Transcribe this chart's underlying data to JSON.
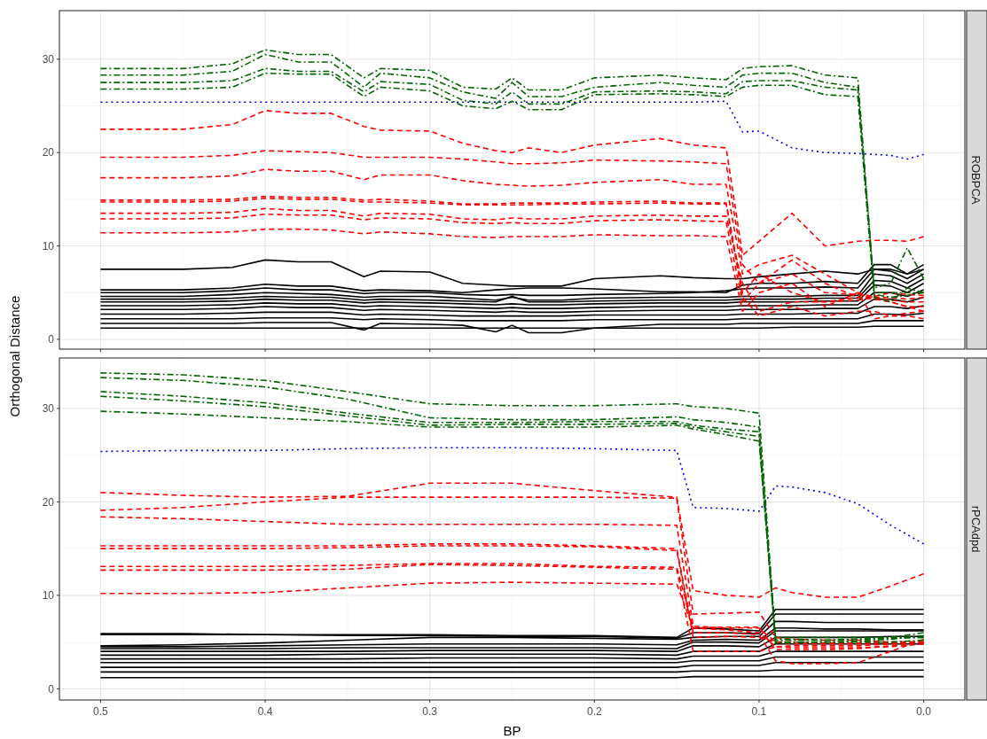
{
  "chart_data": [
    {
      "type": "line",
      "title": "ROBPCA",
      "ylabel": "Orthogonal Distance",
      "xlim": [
        0.525,
        -0.025
      ],
      "ylim": [
        -1.05,
        35.2
      ],
      "xticks": [
        {
          "value": 0.5,
          "label": null
        },
        {
          "value": 0.4,
          "label": null
        },
        {
          "value": 0.3,
          "label": null
        },
        {
          "value": 0.2,
          "label": null
        },
        {
          "value": 0.1,
          "label": null
        },
        {
          "value": 0,
          "label": null
        }
      ],
      "yticks": [
        0,
        10,
        20,
        30
      ],
      "grid": true,
      "tick_labels": "y",
      "x": [
        0.5,
        0.45,
        0.42,
        0.4,
        0.38,
        0.36,
        0.34,
        0.33,
        0.3,
        0.28,
        0.26,
        0.25,
        0.24,
        0.22,
        0.2,
        0.16,
        0.14,
        0.12,
        0.11,
        0.1,
        0.08,
        0.06,
        0.04,
        0.03,
        0.02,
        0.01,
        0.0
      ],
      "series": [
        {
          "color": "#000000",
          "line_style": "solid",
          "values": [
            7.5,
            7.5,
            7.7,
            8.5,
            8.3,
            8.3,
            6.7,
            7.3,
            7.2,
            6,
            5.8,
            5.7,
            5.7,
            5.7,
            6.5,
            6.8,
            6.6,
            6.5,
            6.5,
            6.7,
            7,
            7.3,
            7,
            7.5,
            7.5,
            7,
            7.5
          ]
        },
        {
          "color": "#000000",
          "line_style": "solid",
          "values": [
            5.3,
            5.3,
            5.5,
            5.9,
            5.7,
            5.7,
            5.2,
            5.3,
            5.2,
            5,
            5.3,
            5.4,
            5.5,
            5.5,
            5.4,
            5.1,
            5.1,
            5,
            5.8,
            6,
            6,
            6.2,
            6,
            8,
            8,
            7,
            8
          ]
        },
        {
          "color": "#000000",
          "line_style": "solid",
          "values": [
            5,
            5,
            5.2,
            5.5,
            5.3,
            5.3,
            4.9,
            5,
            5,
            4.8,
            4.7,
            4.8,
            4.7,
            4.7,
            4.8,
            4.9,
            5,
            5.2,
            5.4,
            5.5,
            5.5,
            5.6,
            5.5,
            7.5,
            7.3,
            6.5,
            7.5
          ]
        },
        {
          "color": "#000000",
          "line_style": "solid",
          "values": [
            4.6,
            4.6,
            4.8,
            5,
            4.9,
            4.8,
            4.5,
            4.6,
            4.6,
            4.4,
            4.2,
            4.5,
            4.2,
            4.2,
            4.4,
            4.5,
            4.5,
            4.5,
            4.6,
            4.6,
            4.6,
            4.7,
            4.7,
            7,
            6.8,
            6,
            7
          ]
        },
        {
          "color": "#000000",
          "line_style": "solid",
          "values": [
            4.3,
            4.3,
            4.4,
            4.6,
            4.5,
            4.5,
            4.2,
            4.3,
            4.2,
            4.1,
            4,
            4.6,
            4,
            4,
            4.1,
            4.2,
            4.2,
            4.2,
            4.3,
            4.3,
            4.3,
            4.4,
            4.4,
            6.3,
            6.2,
            5.5,
            6.5
          ]
        },
        {
          "color": "#000000",
          "line_style": "solid",
          "values": [
            4,
            4,
            4.1,
            4.3,
            4.2,
            4.2,
            3.9,
            4,
            3.9,
            3.8,
            3.7,
            3.8,
            3.7,
            3.7,
            3.8,
            3.9,
            3.9,
            3.9,
            4,
            4,
            4,
            4.1,
            4.1,
            5.8,
            5.7,
            5,
            6
          ]
        },
        {
          "color": "#000000",
          "line_style": "solid",
          "values": [
            3.6,
            3.6,
            3.7,
            3.9,
            3.8,
            3.8,
            3.5,
            3.6,
            3.5,
            3.4,
            3.3,
            3.4,
            3.3,
            3.3,
            3.4,
            3.5,
            3.5,
            3.5,
            3.6,
            3.6,
            3.6,
            3.7,
            3.7,
            5,
            5,
            4.6,
            5.3
          ]
        },
        {
          "color": "#000000",
          "line_style": "solid",
          "values": [
            3.2,
            3.2,
            3.3,
            3.5,
            3.4,
            3.4,
            3.1,
            3.2,
            3.1,
            3,
            2.9,
            3,
            2.9,
            2.9,
            3,
            3.1,
            3.1,
            3.1,
            3.2,
            3.2,
            3.2,
            3.3,
            3.3,
            4.3,
            4.3,
            4,
            4.5
          ]
        },
        {
          "color": "#000000",
          "line_style": "solid",
          "values": [
            2.7,
            2.7,
            2.8,
            2.9,
            2.9,
            2.9,
            2.6,
            2.7,
            2.6,
            2.5,
            2.5,
            2.5,
            2.5,
            2.5,
            2.6,
            2.6,
            2.6,
            2.6,
            2.7,
            2.7,
            2.7,
            2.8,
            2.8,
            3.5,
            3.5,
            3.3,
            3.6
          ]
        },
        {
          "color": "#000000",
          "line_style": "solid",
          "values": [
            2.2,
            2.2,
            2.2,
            2.3,
            2.3,
            2.3,
            2.1,
            2.2,
            2.1,
            2,
            2,
            2,
            2,
            2,
            2.1,
            2.1,
            2.1,
            2.1,
            2.2,
            2.2,
            2.2,
            2.2,
            2.2,
            2.7,
            2.7,
            2.6,
            2.8
          ]
        },
        {
          "color": "#000000",
          "line_style": "solid",
          "values": [
            1.7,
            1.7,
            1.7,
            1.8,
            1.8,
            1.8,
            1,
            1.7,
            1.6,
            1.5,
            0.8,
            1.5,
            0.7,
            0.7,
            1.2,
            1.6,
            1.6,
            1.6,
            1.7,
            1.7,
            1.7,
            1.7,
            1.7,
            2,
            2,
            2,
            2
          ]
        },
        {
          "color": "#000000",
          "line_style": "solid",
          "values": [
            1.2,
            1.2,
            1.2,
            1.2,
            1.2,
            1.2,
            1.2,
            1.2,
            1.2,
            1.2,
            1.2,
            1.2,
            1.2,
            1.2,
            1.2,
            1.2,
            1.2,
            1.2,
            1.2,
            1.2,
            1.3,
            1.3,
            1.3,
            1.4,
            1.4,
            1.4,
            1.4
          ]
        },
        {
          "color": "#ff0000",
          "line_style": "dashed",
          "values": [
            22.5,
            22.5,
            23,
            24.5,
            24.2,
            24.2,
            22.8,
            22.4,
            22.3,
            21,
            20.2,
            20,
            20.5,
            20,
            20.8,
            21.5,
            20.8,
            20.5,
            9,
            10.5,
            13.5,
            10,
            10.5,
            10.6,
            10.6,
            10.5,
            11
          ]
        },
        {
          "color": "#ff0000",
          "line_style": "dashed",
          "values": [
            19.5,
            19.5,
            19.7,
            20.2,
            20.1,
            20,
            19.5,
            19.5,
            19.5,
            19.3,
            19,
            18.8,
            18.8,
            18.9,
            19.2,
            19.1,
            19,
            18.8,
            8,
            6,
            8.5,
            6,
            4.5,
            4.3,
            4,
            3.5,
            3.5
          ]
        },
        {
          "color": "#ff0000",
          "line_style": "dashed",
          "values": [
            17.3,
            17.3,
            17.5,
            18.2,
            18,
            18,
            17.1,
            17.6,
            17.6,
            17,
            16.6,
            16.5,
            16.4,
            16.5,
            16.8,
            17.1,
            16.6,
            16.6,
            7,
            8,
            9,
            7,
            5,
            4.5,
            4.2,
            4,
            4
          ]
        },
        {
          "color": "#ff0000",
          "line_style": "dashed",
          "values": [
            14.9,
            14.9,
            15,
            15.3,
            15.2,
            15.2,
            14.9,
            15,
            14.8,
            14.5,
            14.5,
            14.6,
            14.6,
            14.6,
            14.7,
            14.8,
            14.6,
            14.6,
            5,
            7,
            5,
            4,
            4.5,
            4.6,
            5,
            4.8,
            4.7
          ]
        },
        {
          "color": "#ff0000",
          "line_style": "dashed",
          "values": [
            14.7,
            14.7,
            14.8,
            15.1,
            15,
            15,
            14.7,
            14.7,
            14.6,
            14.4,
            14.4,
            14.4,
            14.4,
            14.5,
            14.5,
            14.6,
            14.5,
            14.5,
            4.5,
            2.5,
            3.5,
            2.5,
            3,
            3,
            2.5,
            2.5,
            2.2
          ]
        },
        {
          "color": "#ff0000",
          "line_style": "dashed",
          "values": [
            13.5,
            13.5,
            13.6,
            14,
            13.8,
            13.8,
            13.2,
            13.5,
            13.4,
            12.9,
            12.8,
            13,
            12.9,
            12.9,
            13.2,
            13.3,
            13.2,
            13.2,
            6,
            3,
            4,
            4,
            4.2,
            4.5,
            4.5,
            4.3,
            4.5
          ]
        },
        {
          "color": "#ff0000",
          "line_style": "dashed",
          "values": [
            12.9,
            12.9,
            13,
            13.4,
            13.3,
            13.3,
            12.8,
            13,
            12.9,
            12.5,
            12.4,
            12.5,
            12.4,
            12.4,
            12.7,
            12.8,
            12.7,
            12.6,
            4,
            6,
            7,
            5,
            4.8,
            4.5,
            4,
            3.5,
            3
          ]
        },
        {
          "color": "#ff0000",
          "line_style": "dashed",
          "values": [
            11.4,
            11.4,
            11.5,
            11.8,
            11.8,
            11.7,
            11.3,
            11.5,
            11.3,
            11,
            10.9,
            11,
            11,
            11,
            11.2,
            11.1,
            11.1,
            11,
            3,
            5,
            6,
            3.5,
            5,
            2.2,
            2.5,
            2.8,
            3
          ]
        },
        {
          "color": "#0000ff",
          "line_style": "dotted",
          "values": [
            25.4,
            25.4,
            25.4,
            25.4,
            25.4,
            25.4,
            25.4,
            25.4,
            25.4,
            25.4,
            25.4,
            25.4,
            25.4,
            25.4,
            25.4,
            25.4,
            25.4,
            25.5,
            22.2,
            22.3,
            20.5,
            20,
            19.9,
            19.8,
            19.7,
            19.3,
            19.8
          ]
        },
        {
          "color": "#006400",
          "line_style": "dashdot",
          "values": [
            29,
            29,
            29.5,
            31,
            30.5,
            30.5,
            28,
            29,
            28.8,
            27,
            26.8,
            28,
            26.7,
            26.7,
            28,
            28.3,
            28,
            27.8,
            29,
            29.2,
            29.3,
            28.3,
            28,
            5,
            5,
            5,
            5
          ]
        },
        {
          "color": "#006400",
          "line_style": "dashdot",
          "values": [
            28.3,
            28.3,
            28.7,
            30.5,
            29.7,
            29.7,
            27,
            28.5,
            28,
            26.5,
            25.8,
            27.5,
            26,
            26,
            27,
            27.5,
            27.2,
            27,
            28.3,
            28.5,
            28.5,
            27.5,
            27,
            4.8,
            4.5,
            4.7,
            5
          ]
        },
        {
          "color": "#006400",
          "line_style": "dashdot",
          "values": [
            27.5,
            27.5,
            27.7,
            29,
            28.7,
            28.7,
            26.5,
            27.6,
            27.3,
            25.6,
            25.2,
            26.5,
            25.2,
            25.2,
            26.5,
            26.6,
            26.5,
            26.3,
            27.6,
            27.7,
            27.7,
            27,
            26.7,
            5.5,
            6,
            9.8,
            6.5
          ]
        },
        {
          "color": "#006400",
          "line_style": "dashdot",
          "values": [
            26.8,
            26.8,
            27,
            28.5,
            28.4,
            28.4,
            26,
            27,
            26.6,
            25,
            24.7,
            25.5,
            24.6,
            24.6,
            26.2,
            26.3,
            26.2,
            26,
            27,
            27.2,
            27.2,
            26.2,
            26,
            4.5,
            4,
            5.5,
            5
          ]
        }
      ]
    },
    {
      "type": "line",
      "title": "rPCAdpd",
      "xlabel": "BP",
      "xlim": [
        0.525,
        -0.025
      ],
      "ylim": [
        -1.2,
        35.4
      ],
      "xticks": [
        {
          "value": 0.5,
          "label": "0.5"
        },
        {
          "value": 0.4,
          "label": "0.4"
        },
        {
          "value": 0.3,
          "label": "0.3"
        },
        {
          "value": 0.2,
          "label": "0.2"
        },
        {
          "value": 0.1,
          "label": "0.1"
        },
        {
          "value": 0,
          "label": "0.0"
        }
      ],
      "yticks": [
        0,
        10,
        20,
        30
      ],
      "grid": true,
      "x": [
        0.5,
        0.45,
        0.4,
        0.35,
        0.3,
        0.25,
        0.2,
        0.15,
        0.14,
        0.12,
        0.1,
        0.09,
        0.08,
        0.06,
        0.04,
        0.02,
        0.0
      ],
      "series": [
        {
          "color": "#000000",
          "line_style": "solid",
          "values": [
            5.9,
            5.9,
            5.8,
            5.8,
            5.8,
            5.7,
            5.7,
            5.5,
            6.5,
            6.4,
            6.2,
            8.5,
            8.5,
            8.5,
            8.5,
            8.5,
            8.5
          ]
        },
        {
          "color": "#000000",
          "line_style": "solid",
          "values": [
            5.8,
            5.8,
            5.8,
            5.7,
            5.7,
            5.6,
            5.6,
            5.4,
            6,
            6,
            5.9,
            8,
            8,
            8,
            8,
            8,
            8
          ]
        },
        {
          "color": "#000000",
          "line_style": "solid",
          "values": [
            4.6,
            4.7,
            4.9,
            5.2,
            5.5,
            5.5,
            5.4,
            5.3,
            5.5,
            5.6,
            5.6,
            7.2,
            7.2,
            7.1,
            7.1,
            7.1,
            7.1
          ]
        },
        {
          "color": "#000000",
          "line_style": "solid",
          "values": [
            4.5,
            4.5,
            4.6,
            4.7,
            4.8,
            4.8,
            4.8,
            4.7,
            5.2,
            5.3,
            5.2,
            6.5,
            6.5,
            6.4,
            6.4,
            6.3,
            6.3
          ]
        },
        {
          "color": "#000000",
          "line_style": "solid",
          "values": [
            4.3,
            4.3,
            4.3,
            4.4,
            4.4,
            4.4,
            4.4,
            4.3,
            5,
            5,
            4.9,
            6.2,
            6.2,
            6.2,
            6.2,
            6.2,
            6.2
          ]
        },
        {
          "color": "#000000",
          "line_style": "solid",
          "values": [
            4,
            4,
            4,
            4,
            4.1,
            4.1,
            4.1,
            4,
            4.6,
            4.6,
            4.5,
            5.5,
            5.5,
            5.5,
            5.5,
            5.6,
            5.6
          ]
        },
        {
          "color": "#000000",
          "line_style": "solid",
          "values": [
            3.6,
            3.6,
            3.6,
            3.7,
            3.7,
            3.7,
            3.7,
            3.6,
            4,
            4,
            4,
            4.8,
            4.8,
            4.8,
            4.8,
            4.8,
            4.8
          ]
        },
        {
          "color": "#000000",
          "line_style": "solid",
          "values": [
            3.2,
            3.2,
            3.2,
            3.2,
            3.3,
            3.3,
            3.3,
            3.2,
            3.5,
            3.5,
            3.5,
            4,
            4,
            4,
            4,
            4,
            4
          ]
        },
        {
          "color": "#000000",
          "line_style": "solid",
          "values": [
            2.8,
            2.8,
            2.8,
            2.8,
            2.8,
            2.8,
            2.8,
            2.8,
            3,
            3,
            3,
            3.4,
            3.4,
            3.4,
            3.4,
            3.4,
            3.4
          ]
        },
        {
          "color": "#000000",
          "line_style": "solid",
          "values": [
            2.3,
            2.3,
            2.3,
            2.3,
            2.3,
            2.3,
            2.3,
            2.3,
            2.5,
            2.5,
            2.5,
            2.8,
            2.8,
            2.8,
            2.8,
            2.8,
            2.8
          ]
        },
        {
          "color": "#000000",
          "line_style": "solid",
          "values": [
            1.8,
            1.8,
            1.8,
            1.8,
            1.8,
            1.8,
            1.8,
            1.8,
            1.9,
            1.9,
            1.9,
            2,
            2,
            2,
            2,
            2,
            2
          ]
        },
        {
          "color": "#000000",
          "line_style": "solid",
          "values": [
            1.2,
            1.2,
            1.2,
            1.2,
            1.2,
            1.2,
            1.2,
            1.2,
            1.3,
            1.3,
            1.3,
            1.3,
            1.3,
            1.3,
            1.3,
            1.3,
            1.3
          ]
        },
        {
          "color": "#ff0000",
          "line_style": "dashed",
          "values": [
            21,
            20.7,
            20.5,
            20.6,
            22,
            22,
            21.2,
            20.5,
            10.5,
            10,
            9.8,
            10.8,
            10.3,
            9.8,
            9.8,
            11,
            12.3
          ]
        },
        {
          "color": "#ff0000",
          "line_style": "dashed",
          "values": [
            19.1,
            19.4,
            20,
            20.5,
            20.5,
            20.5,
            20.5,
            20.4,
            8,
            8.1,
            8.2,
            5.5,
            5.3,
            5.2,
            5.2,
            5,
            5
          ]
        },
        {
          "color": "#ff0000",
          "line_style": "dashed",
          "values": [
            18.4,
            18.2,
            17.9,
            17.6,
            17.6,
            17.6,
            17.6,
            17.5,
            6.7,
            6.5,
            6.5,
            5,
            5,
            4.9,
            4.9,
            5,
            5
          ]
        },
        {
          "color": "#ff0000",
          "line_style": "dashed",
          "values": [
            15.3,
            15.3,
            15.3,
            15.3,
            15.5,
            15.5,
            15.3,
            15,
            6,
            6,
            5.8,
            3,
            2.7,
            2.7,
            2.8,
            4,
            5.3
          ]
        },
        {
          "color": "#ff0000",
          "line_style": "dashed",
          "values": [
            15,
            15,
            15,
            15.1,
            15.3,
            15.3,
            15.2,
            14.8,
            5.5,
            5.6,
            5.5,
            5,
            4.8,
            4.8,
            4.8,
            4.9,
            5
          ]
        },
        {
          "color": "#ff0000",
          "line_style": "dashed",
          "values": [
            13.1,
            13.1,
            13.1,
            13.2,
            13.4,
            13.4,
            13.1,
            13,
            6.5,
            6.3,
            6,
            4.5,
            4.6,
            4.6,
            4.6,
            4.8,
            5
          ]
        },
        {
          "color": "#ff0000",
          "line_style": "dashed",
          "values": [
            12.7,
            12.7,
            12.7,
            12.8,
            13.3,
            13.2,
            13,
            12.8,
            4,
            4,
            4,
            4.5,
            4.4,
            4.4,
            4.4,
            4.5,
            4.8
          ]
        },
        {
          "color": "#ff0000",
          "line_style": "dashed",
          "values": [
            10.2,
            10.2,
            10.3,
            10.8,
            11.3,
            11.4,
            11.3,
            11.2,
            6.5,
            6.6,
            6.6,
            4.2,
            4.2,
            4.2,
            4.3,
            4.6,
            5
          ]
        },
        {
          "color": "#0000ff",
          "line_style": "dotted",
          "values": [
            25.4,
            25.5,
            25.5,
            25.7,
            25.8,
            25.8,
            25.7,
            25.5,
            19.4,
            19.3,
            19,
            21.7,
            21.6,
            21,
            19.8,
            17.5,
            15.5
          ]
        },
        {
          "color": "#006400",
          "line_style": "dashdot",
          "values": [
            33.8,
            33.6,
            33,
            31.8,
            30.5,
            30.3,
            30.3,
            30.5,
            30.2,
            30,
            29.5,
            5.5,
            5.5,
            5.5,
            5.5,
            5.5,
            5.5
          ]
        },
        {
          "color": "#006400",
          "line_style": "dashdot",
          "values": [
            33.3,
            33,
            32.3,
            31,
            29,
            28.8,
            28.8,
            29.1,
            28.8,
            28.5,
            28,
            5.2,
            5.2,
            5.2,
            5.3,
            5.4,
            5.5
          ]
        },
        {
          "color": "#006400",
          "line_style": "dashdot",
          "values": [
            31.8,
            31.3,
            30.6,
            29.5,
            28.5,
            28.5,
            28.6,
            28.6,
            28.2,
            27.8,
            27.5,
            5,
            5,
            5,
            5.1,
            5.3,
            5.7
          ]
        },
        {
          "color": "#006400",
          "line_style": "dashdot",
          "values": [
            31.3,
            30.8,
            30.2,
            29.2,
            28.2,
            28.3,
            28.3,
            28.4,
            28,
            27.5,
            27,
            4.9,
            4.9,
            5,
            5,
            5,
            5.2
          ]
        },
        {
          "color": "#006400",
          "line_style": "dashdot",
          "values": [
            29.7,
            29.4,
            29,
            28.6,
            28,
            28,
            28,
            28.2,
            27.8,
            27.2,
            26.5,
            5.3,
            5.3,
            5.2,
            5.3,
            5.5,
            6
          ]
        }
      ]
    }
  ]
}
